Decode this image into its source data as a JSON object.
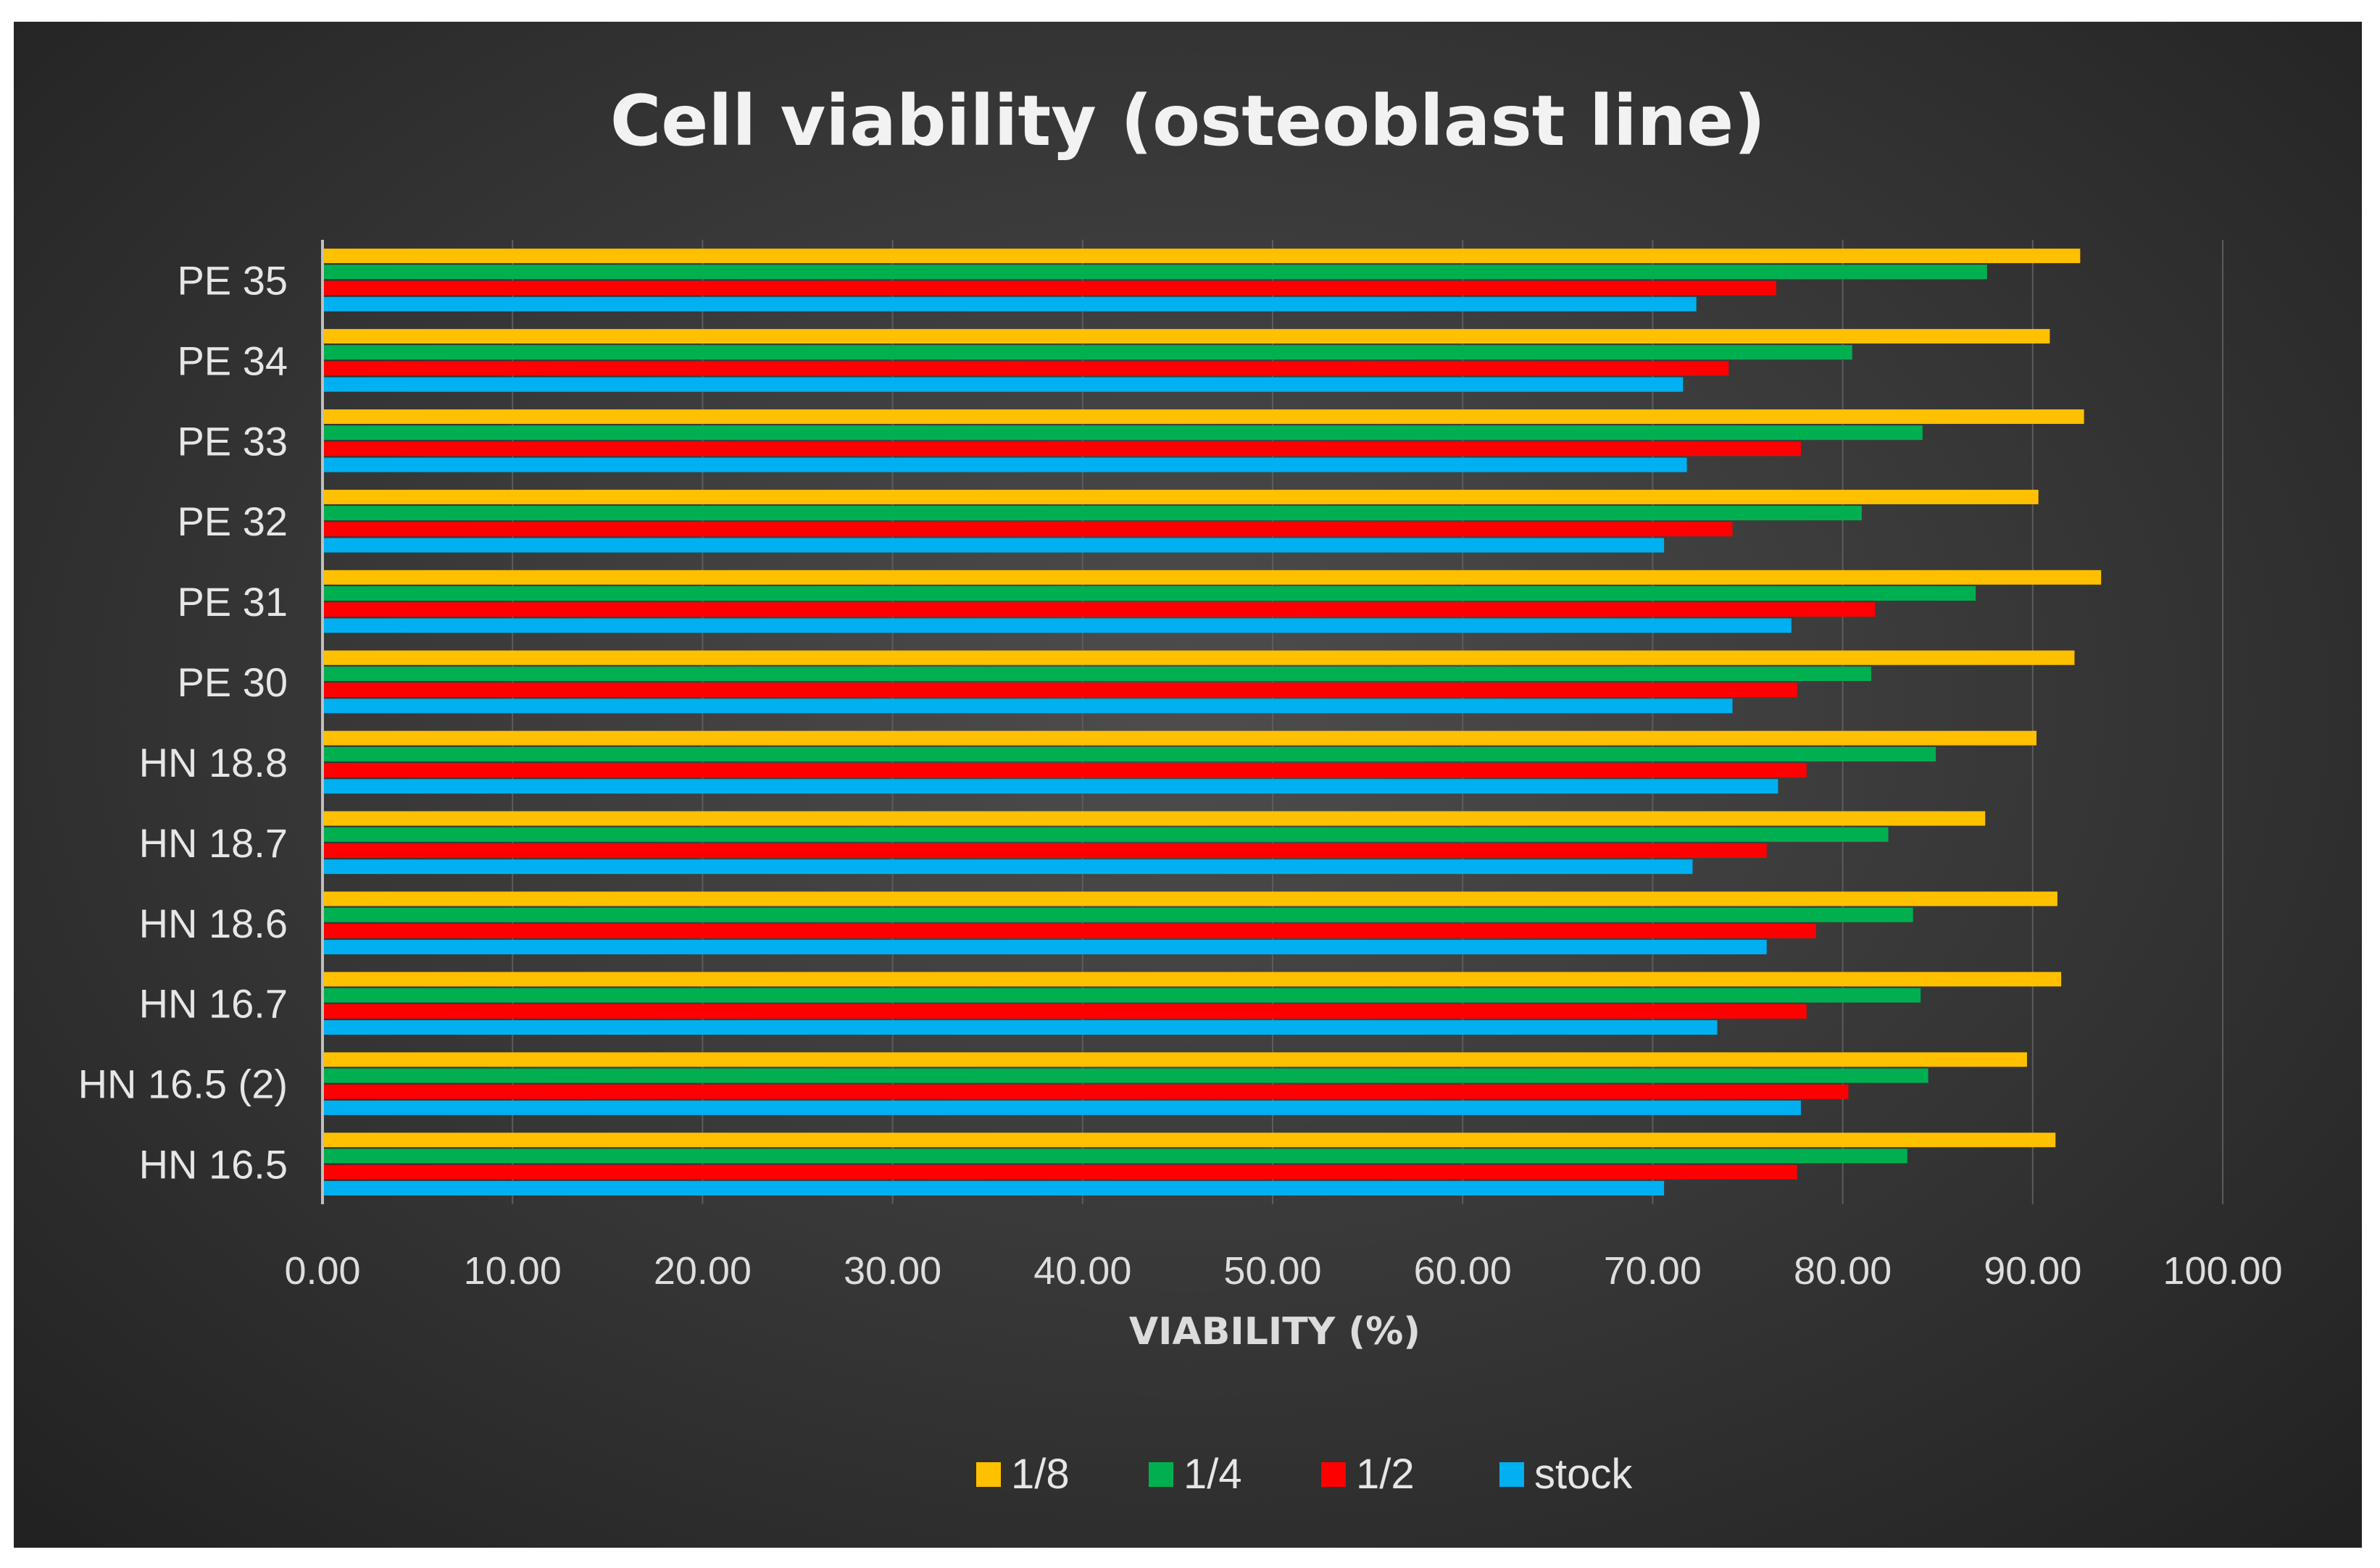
{
  "chart_data": {
    "type": "bar",
    "orientation": "horizontal",
    "title": "Cell viability (osteoblast line)",
    "xlabel": "VIABILITY (%)",
    "ylabel": "",
    "xlim": [
      0,
      100
    ],
    "x_ticks": [
      "0.00",
      "10.00",
      "20.00",
      "30.00",
      "40.00",
      "50.00",
      "60.00",
      "70.00",
      "80.00",
      "90.00",
      "100.00"
    ],
    "grid": true,
    "legend_position": "bottom",
    "categories": [
      "PE 35",
      "PE 34",
      "PE 33",
      "PE 32",
      "PE 31",
      "PE 30",
      "HN 18.8",
      "HN 18.7",
      "HN 18.6",
      "HN 16.7",
      "HN 16.5 (2)",
      "HN 16.5"
    ],
    "series": [
      {
        "name": "1/8",
        "color": "#FFC000",
        "values": [
          92.5,
          90.9,
          92.7,
          90.3,
          93.6,
          92.2,
          90.2,
          87.5,
          91.3,
          91.5,
          89.7,
          91.2
        ]
      },
      {
        "name": "1/4",
        "color": "#00B050",
        "values": [
          87.6,
          80.5,
          84.2,
          81.0,
          87.0,
          81.5,
          84.9,
          82.4,
          83.7,
          84.1,
          84.5,
          83.4
        ]
      },
      {
        "name": "1/2",
        "color": "#FF0000",
        "values": [
          76.5,
          74.0,
          77.8,
          74.2,
          81.7,
          77.6,
          78.1,
          76.0,
          78.6,
          78.1,
          80.3,
          77.6
        ]
      },
      {
        "name": "stock",
        "color": "#00B0F0",
        "values": [
          72.3,
          71.6,
          71.8,
          70.6,
          77.3,
          74.2,
          76.6,
          72.1,
          76.0,
          73.4,
          77.8,
          70.6
        ]
      }
    ],
    "legend_order": [
      "1/8",
      "1/4",
      "1/2",
      "stock"
    ]
  }
}
